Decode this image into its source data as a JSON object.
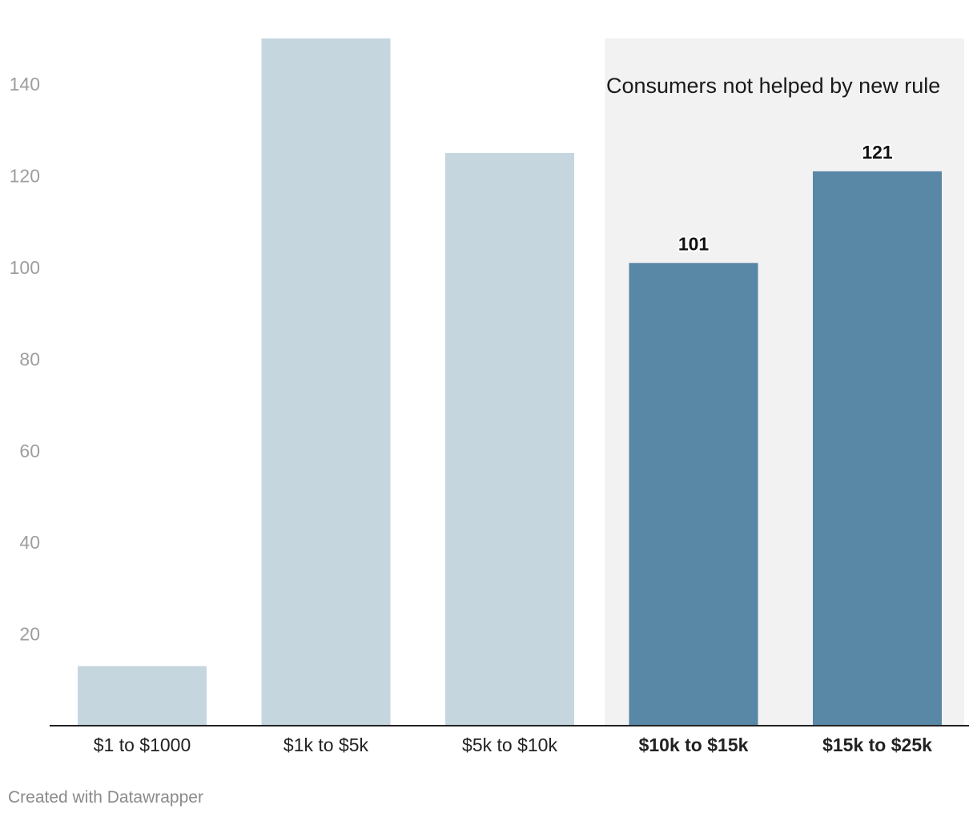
{
  "chart_data": {
    "type": "bar",
    "categories": [
      "$1 to $1000",
      "$1k to $5k",
      "$5k to $10k",
      "$10k to $15k",
      "$15k to $25k"
    ],
    "values": [
      13,
      150,
      125,
      101,
      121
    ],
    "highlighted": [
      false,
      false,
      false,
      true,
      true
    ],
    "data_labels": [
      "",
      "",
      "",
      "101",
      "121"
    ],
    "ylim": [
      0,
      150
    ],
    "yticks": [
      20,
      40,
      60,
      80,
      100,
      120,
      140
    ],
    "grid": false,
    "colors": {
      "base": "#c5d6df",
      "highlight": "#5987a6",
      "region": "#f2f2f2",
      "axis": "#222222"
    },
    "annotation": {
      "text": "Consumers not helped by new rule",
      "start_category": "$10k to $15k"
    }
  },
  "footer": {
    "credit": "Created with Datawrapper"
  }
}
